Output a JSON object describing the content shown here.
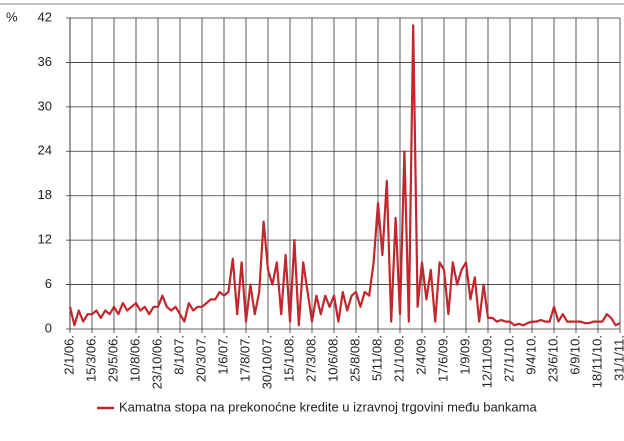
{
  "chart_data": {
    "type": "line",
    "y_label": "%",
    "categories": [
      "2/1/06.",
      null,
      null,
      null,
      null,
      "15/3/06.",
      null,
      null,
      null,
      null,
      "29/5/06.",
      null,
      null,
      null,
      null,
      "10/8/06.",
      null,
      null,
      null,
      null,
      "23/10/06.",
      null,
      null,
      null,
      null,
      "8/1/07.",
      null,
      null,
      null,
      null,
      "20/3/07.",
      null,
      null,
      null,
      null,
      "1/6/07.",
      null,
      null,
      null,
      null,
      "17/8/07.",
      null,
      null,
      null,
      null,
      "30/10/07.",
      null,
      null,
      null,
      null,
      "15/1/08.",
      null,
      null,
      null,
      null,
      "27/3/08.",
      null,
      null,
      null,
      null,
      "10/6/08.",
      null,
      null,
      null,
      null,
      "25/8/08.",
      null,
      null,
      null,
      null,
      "5/11/08.",
      null,
      null,
      null,
      null,
      "21/1/09.",
      null,
      null,
      null,
      null,
      "2/4/09.",
      null,
      null,
      null,
      null,
      "17/6/09.",
      null,
      null,
      null,
      null,
      "1/9/09.",
      null,
      null,
      null,
      null,
      "12/11/09.",
      null,
      null,
      null,
      null,
      "27/1/10.",
      null,
      null,
      null,
      null,
      "9/4/10.",
      null,
      null,
      null,
      null,
      "23/6/10.",
      null,
      null,
      null,
      null,
      "6/9/10.",
      null,
      null,
      null,
      null,
      "18/11/10.",
      null,
      null,
      null,
      null,
      "31/1/11."
    ],
    "series": [
      {
        "name": "Kamatna stopa na prekonoćne kredite u izravnoj trgovini među bankama",
        "color": "#c1272d",
        "values": [
          3,
          0.5,
          2.5,
          1,
          2,
          2,
          2.5,
          1.5,
          2.5,
          2,
          3,
          2,
          3.5,
          2.5,
          3,
          3.5,
          2.5,
          3,
          2,
          3,
          3,
          4.5,
          3,
          2.5,
          3,
          2,
          1,
          3.5,
          2.5,
          3,
          3,
          3.5,
          4,
          4,
          5,
          4.5,
          5,
          9.5,
          2,
          9,
          1,
          6,
          2,
          5,
          14.5,
          8,
          6,
          9,
          2,
          10,
          1,
          12,
          0.5,
          9,
          5,
          1,
          4.5,
          2,
          4.5,
          3,
          4.5,
          1,
          5,
          2.5,
          4.5,
          5,
          3,
          5,
          4.5,
          9,
          17,
          10,
          20,
          1,
          15,
          2,
          24,
          1,
          41,
          3,
          9,
          4,
          8,
          1,
          9,
          8,
          2,
          9,
          6,
          8,
          9,
          4,
          7,
          1,
          6,
          1.5,
          1.5,
          1,
          1.2,
          1,
          1,
          0.5,
          0.7,
          0.5,
          0.8,
          1,
          1,
          1.2,
          1,
          1,
          3,
          1,
          2,
          1,
          1,
          1,
          1,
          0.8,
          0.8,
          1,
          1,
          1,
          2,
          1.5,
          0.5,
          0.8
        ]
      }
    ],
    "ylim": [
      0,
      42
    ],
    "yticks": [
      0,
      6,
      12,
      18,
      24,
      30,
      36,
      42
    ],
    "grid": true
  }
}
